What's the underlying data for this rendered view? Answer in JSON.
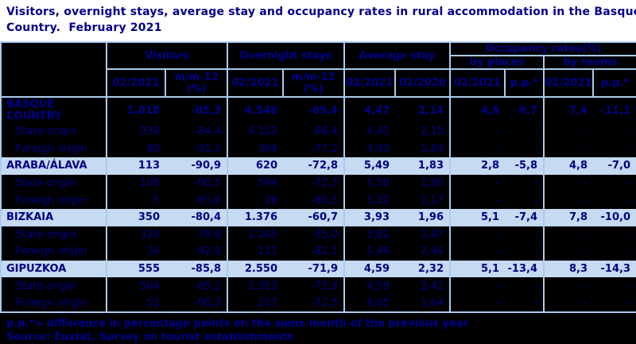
{
  "header": {
    "title_lines": [
      "Visitors, overnight stays, average stay and occupancy rates in rural accommodation in the Basque",
      "Country.  February 2021"
    ]
  },
  "chart_data": {
    "type": "table",
    "title": "Visitors, overnight stays, average stay and occupancy rates in rural accommodation in the Basque Country. February 2021",
    "column_groups": [
      {
        "label": "Visitors",
        "columns": [
          "02/2021",
          "m/m-12 (%)"
        ]
      },
      {
        "label": "Overnight stays",
        "columns": [
          "02/2021",
          "m/m-12 (%)"
        ]
      },
      {
        "label": "Average stay",
        "columns": [
          "02/2021",
          "02/2020"
        ]
      },
      {
        "label": "Occupancy rates(%)",
        "subgroups": [
          {
            "label": "by places",
            "columns": [
              "02/2021",
              "p.p.*"
            ]
          },
          {
            "label": "by rooms",
            "columns": [
              "02/2021",
              "p.p.*"
            ]
          }
        ]
      }
    ],
    "rows": [
      {
        "label": "BASQUE COUNTRY",
        "style": "total",
        "values": [
          "1.018",
          "-85,3",
          "4.546",
          "-69,4",
          "4,47",
          "2,14",
          "4,6",
          "-9,7",
          "7,4",
          "-11,1"
        ]
      },
      {
        "label": "State origin",
        "style": "sub",
        "values": [
          "938",
          "-84,4",
          "4.152",
          "-68,4",
          "4,43",
          "2,18",
          "-",
          "-",
          "-",
          "-"
        ]
      },
      {
        "label": "Foreign origin",
        "style": "sub",
        "values": [
          "80",
          "-91,5",
          "394",
          "-77,2",
          "4,93",
          "1,84",
          "-",
          "-",
          "-",
          "-"
        ]
      },
      {
        "label": "ARABA/ÁLAVA",
        "style": "province",
        "values": [
          "113",
          "-90,9",
          "620",
          "-72,8",
          "5,49",
          "1,83",
          "2,8",
          "-5,8",
          "4,8",
          "-7,0"
        ]
      },
      {
        "label": "State origin",
        "style": "sub",
        "values": [
          "108",
          "-90,5",
          "594",
          "-72,3",
          "5,50",
          "1,90",
          "-",
          "-",
          "-",
          "-"
        ]
      },
      {
        "label": "Foreign origin",
        "style": "sub",
        "values": [
          "5",
          "-95,6",
          "26",
          "-80,5",
          "5,20",
          "1,17",
          "-",
          "-",
          "-",
          "-"
        ]
      },
      {
        "label": "BIZKAIA",
        "style": "province",
        "values": [
          "350",
          "-80,4",
          "1.376",
          "-60,7",
          "3,93",
          "1,96",
          "5,1",
          "-7,4",
          "7,8",
          "-10,0"
        ]
      },
      {
        "label": "State origin",
        "style": "sub",
        "values": [
          "326",
          "-78,0",
          "1.245",
          "-55,0",
          "3,82",
          "1,87",
          "-",
          "-",
          "-",
          "-"
        ]
      },
      {
        "label": "Foreign origin",
        "style": "sub",
        "values": [
          "24",
          "-92,0",
          "131",
          "-82,1",
          "5,46",
          "2,44",
          "-",
          "-",
          "-",
          "-"
        ]
      },
      {
        "label": "GIPUZKOA",
        "style": "province",
        "values": [
          "555",
          "-85,8",
          "2.550",
          "-71,9",
          "4,59",
          "2,32",
          "5,1",
          "-13,4",
          "8,3",
          "-14,3"
        ]
      },
      {
        "label": "State origin",
        "style": "sub",
        "values": [
          "504",
          "-85,1",
          "2.313",
          "-71,8",
          "4,59",
          "2,42",
          "-",
          "-",
          "-",
          "-"
        ]
      },
      {
        "label": "Foreign origin",
        "style": "sub",
        "values": [
          "51",
          "-90,3",
          "237",
          "-72,5",
          "4,65",
          "1,64",
          "-",
          "-",
          "-",
          "-"
        ]
      }
    ]
  },
  "footer": {
    "footnote": "p.p.*= difference in percentage points on the same month of the previous year",
    "source": "Source: Eustat. Survey on tourist establishments"
  },
  "colors": {
    "title_text": "#00008b",
    "table_text": "#00008b",
    "highlight_row_bg": "#c6daf2",
    "highlight_row_text": "#000080",
    "border": "#a9cbee",
    "table_bg": "#000000",
    "page_bg": "#000000",
    "title_bg": "#ffffff"
  }
}
